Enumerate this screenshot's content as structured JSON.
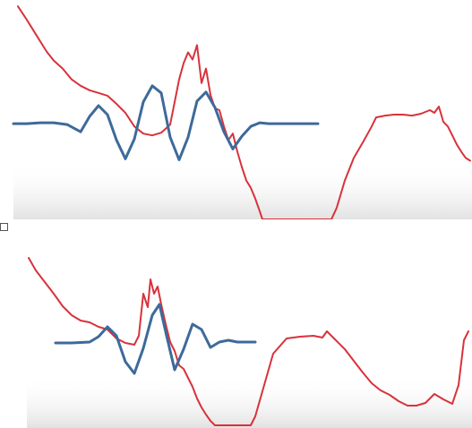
{
  "colors": {
    "signal": "#d8323c",
    "wavelet": "#3d6a9a",
    "floor": "#e6e6e6"
  },
  "chart_data": [
    {
      "type": "line",
      "title": "",
      "xlabel": "",
      "ylabel": "",
      "xlim": [
        0,
        527
      ],
      "ylim": [
        -243,
        0
      ],
      "grid": false,
      "series": [
        {
          "role": "signal",
          "x": [
            20,
            30,
            40,
            52,
            60,
            70,
            80,
            90,
            100,
            110,
            120,
            130,
            140,
            150,
            160,
            170,
            180,
            190,
            196,
            200,
            205,
            210,
            215,
            220,
            225,
            230,
            235,
            240,
            245,
            250,
            255,
            260,
            265,
            270,
            275,
            280,
            285,
            290,
            293,
            300,
            370,
            376,
            385,
            395,
            405,
            415,
            420,
            430,
            440,
            450,
            460,
            470,
            480,
            485,
            490,
            495,
            500,
            505,
            510,
            515,
            520,
            525
          ],
          "y": [
            -7,
            -22,
            -38,
            -57,
            -67,
            -76,
            -88,
            -95,
            -100,
            -103,
            -106,
            -115,
            -125,
            -140,
            -148,
            -150,
            -147,
            -138,
            -108,
            -88,
            -70,
            -58,
            -66,
            -50,
            -92,
            -76,
            -105,
            -120,
            -122,
            -140,
            -155,
            -148,
            -168,
            -185,
            -200,
            -208,
            -220,
            -234,
            -243,
            -243,
            -243,
            -230,
            -200,
            -175,
            -158,
            -140,
            -130,
            -128,
            -127,
            -127,
            -128,
            -126,
            -122,
            -125,
            -118,
            -135,
            -140,
            -150,
            -160,
            -168,
            -175,
            -178
          ]
        },
        {
          "role": "wavelet",
          "x": [
            15,
            30,
            45,
            60,
            75,
            90,
            100,
            110,
            120,
            130,
            140,
            150,
            160,
            170,
            180,
            190,
            200,
            210,
            220,
            230,
            240,
            250,
            260,
            270,
            280,
            290,
            300,
            315,
            330,
            355
          ],
          "y": [
            -137,
            -137,
            -136,
            -136,
            -138,
            -146,
            -129,
            -117,
            -127,
            -155,
            -176,
            -154,
            -113,
            -95,
            -103,
            -152,
            -177,
            -152,
            -112,
            -102,
            -119,
            -146,
            -165,
            -151,
            -140,
            -136,
            -137,
            -137,
            -137,
            -137
          ]
        }
      ]
    },
    {
      "type": "line",
      "title": "",
      "xlabel": "",
      "ylabel": "",
      "xlim": [
        0,
        527
      ],
      "ylim": [
        -208,
        0
      ],
      "grid": false,
      "series": [
        {
          "role": "signal",
          "x": [
            32,
            40,
            50,
            60,
            70,
            80,
            90,
            100,
            110,
            120,
            130,
            140,
            150,
            155,
            160,
            165,
            168,
            172,
            176,
            180,
            185,
            190,
            195,
            200,
            205,
            210,
            215,
            220,
            225,
            230,
            235,
            240,
            280,
            285,
            295,
            305,
            320,
            335,
            350,
            360,
            365,
            375,
            385,
            395,
            405,
            415,
            425,
            435,
            445,
            455,
            465,
            475,
            485,
            495,
            505,
            512,
            518,
            523
          ],
          "y": [
            -18,
            -32,
            -45,
            -58,
            -72,
            -82,
            -88,
            -90,
            -95,
            -98,
            -108,
            -113,
            -115,
            -105,
            -58,
            -73,
            -42,
            -58,
            -50,
            -70,
            -92,
            -112,
            -122,
            -138,
            -142,
            -152,
            -162,
            -175,
            -185,
            -193,
            -200,
            -205,
            -205,
            -195,
            -160,
            -125,
            -108,
            -106,
            -105,
            -107,
            -100,
            -110,
            -120,
            -133,
            -146,
            -158,
            -166,
            -171,
            -178,
            -183,
            -183,
            -180,
            -170,
            -176,
            -181,
            -160,
            -110,
            -100
          ]
        },
        {
          "role": "wavelet",
          "x": [
            62,
            80,
            100,
            110,
            120,
            130,
            140,
            150,
            160,
            170,
            178,
            186,
            195,
            205,
            215,
            225,
            235,
            245,
            255,
            265,
            285
          ],
          "y": [
            -113,
            -113,
            -112,
            -106,
            -95,
            -105,
            -134,
            -147,
            -119,
            -82,
            -70,
            -105,
            -143,
            -120,
            -92,
            -98,
            -118,
            -112,
            -110,
            -112,
            -112
          ]
        }
      ]
    }
  ]
}
